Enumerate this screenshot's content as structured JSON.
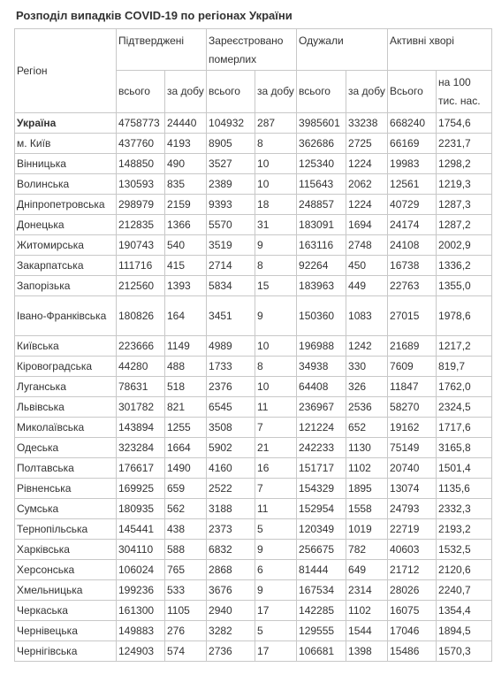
{
  "title": "Розподіл випадків COVID-19 по регіонах України",
  "headers": {
    "region": "Регіон",
    "confirmed": "Підтверджені",
    "deaths": "Зареєстровано померлих",
    "recovered": "Одужали",
    "active": "Активні хворі",
    "total": "всього",
    "per_day": "за добу",
    "active_total": "Всього",
    "per_100k": "на 100 тис. нас."
  },
  "rows": [
    [
      "Україна",
      "4758773",
      "24440",
      "104932",
      "287",
      "3985601",
      "33238",
      "668240",
      "1754,6"
    ],
    [
      "м. Київ",
      "437760",
      "4193",
      "8905",
      "8",
      "362686",
      "2725",
      "66169",
      "2231,7"
    ],
    [
      "Вінницька",
      "148850",
      "490",
      "3527",
      "10",
      "125340",
      "1224",
      "19983",
      "1298,2"
    ],
    [
      "Волинська",
      "130593",
      "835",
      "2389",
      "10",
      "115643",
      "2062",
      "12561",
      "1219,3"
    ],
    [
      "Дніпропетровська",
      "298979",
      "2159",
      "9393",
      "18",
      "248857",
      "1224",
      "40729",
      "1287,3"
    ],
    [
      "Донецька",
      "212835",
      "1366",
      "5570",
      "31",
      "183091",
      "1694",
      "24174",
      "1287,2"
    ],
    [
      "Житомирська",
      "190743",
      "540",
      "3519",
      "9",
      "163116",
      "2748",
      "24108",
      "2002,9"
    ],
    [
      "Закарпатська",
      "111716",
      "415",
      "2714",
      "8",
      "92264",
      "450",
      "16738",
      "1336,2"
    ],
    [
      "Запорізька",
      "212560",
      "1393",
      "5834",
      "15",
      "183963",
      "449",
      "22763",
      "1355,0"
    ],
    [
      "Івано-Франківська",
      "180826",
      "164",
      "3451",
      "9",
      "150360",
      "1083",
      "27015",
      "1978,6"
    ],
    [
      "Київська",
      "223666",
      "1149",
      "4989",
      "10",
      "196988",
      "1242",
      "21689",
      "1217,2"
    ],
    [
      "Кіровоградська",
      "44280",
      "488",
      "1733",
      "8",
      "34938",
      "330",
      "7609",
      "819,7"
    ],
    [
      "Луганська",
      "78631",
      "518",
      "2376",
      "10",
      "64408",
      "326",
      "11847",
      "1762,0"
    ],
    [
      "Львівська",
      "301782",
      "821",
      "6545",
      "11",
      "236967",
      "2536",
      "58270",
      "2324,5"
    ],
    [
      "Миколаївська",
      "143894",
      "1255",
      "3508",
      "7",
      "121224",
      "652",
      "19162",
      "1717,6"
    ],
    [
      "Одеська",
      "323284",
      "1664",
      "5902",
      "21",
      "242233",
      "1130",
      "75149",
      "3165,8"
    ],
    [
      "Полтавська",
      "176617",
      "1490",
      "4160",
      "16",
      "151717",
      "1102",
      "20740",
      "1501,4"
    ],
    [
      "Рівненська",
      "169925",
      "659",
      "2522",
      "7",
      "154329",
      "1895",
      "13074",
      "1135,6"
    ],
    [
      "Сумська",
      "180935",
      "562",
      "3188",
      "11",
      "152954",
      "1558",
      "24793",
      "2332,3"
    ],
    [
      "Тернопільська",
      "145441",
      "438",
      "2373",
      "5",
      "120349",
      "1019",
      "22719",
      "2193,2"
    ],
    [
      "Харківська",
      "304110",
      "588",
      "6832",
      "9",
      "256675",
      "782",
      "40603",
      "1532,5"
    ],
    [
      "Херсонська",
      "106024",
      "765",
      "2868",
      "6",
      "81444",
      "649",
      "21712",
      "2120,6"
    ],
    [
      "Хмельницька",
      "199236",
      "533",
      "3676",
      "9",
      "167534",
      "2314",
      "28026",
      "2240,7"
    ],
    [
      "Черкаська",
      "161300",
      "1105",
      "2940",
      "17",
      "142285",
      "1102",
      "16075",
      "1354,4"
    ],
    [
      "Чернівецька",
      "149883",
      "276",
      "3282",
      "5",
      "129555",
      "1544",
      "17046",
      "1894,5"
    ],
    [
      "Чернігівська",
      "124903",
      "574",
      "2736",
      "17",
      "106681",
      "1398",
      "15486",
      "1570,3"
    ]
  ]
}
